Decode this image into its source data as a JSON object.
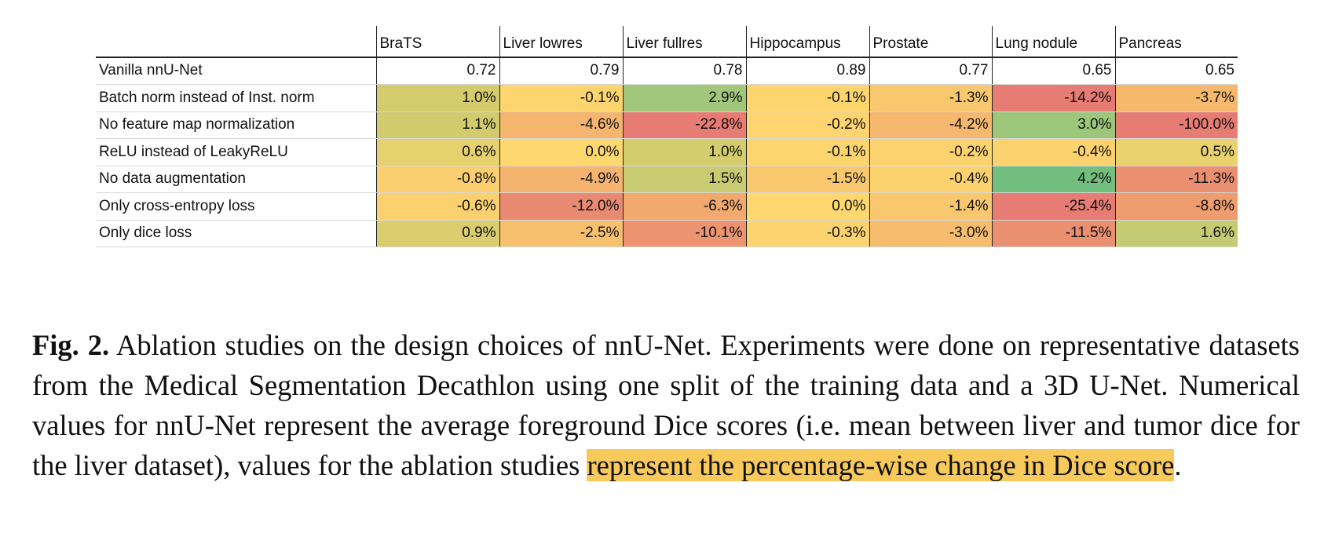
{
  "table": {
    "columns": [
      "BraTS",
      "Liver lowres",
      "Liver fullres",
      "Hippocampus",
      "Prostate",
      "Lung nodule",
      "Pancreas"
    ],
    "rows": [
      {
        "label": "Vanilla nnU-Net",
        "cells": [
          "0.72",
          "0.79",
          "0.78",
          "0.89",
          "0.77",
          "0.65",
          "0.65"
        ]
      },
      {
        "label": "Batch norm instead of Inst. norm",
        "cells": [
          "1.0%",
          "-0.1%",
          "2.9%",
          "-0.1%",
          "-1.3%",
          "-14.2%",
          "-3.7%"
        ],
        "colors": [
          "#d4cb6c",
          "#fdd56f",
          "#a0c77b",
          "#fdd56f",
          "#f9c76d",
          "#e67c73",
          "#f5b86d"
        ]
      },
      {
        "label": "No feature map normalization",
        "cells": [
          "1.1%",
          "-4.6%",
          "-22.8%",
          "-0.2%",
          "-4.2%",
          "3.0%",
          "-100.0%"
        ],
        "colors": [
          "#d2cb6d",
          "#f5b56e",
          "#e67c73",
          "#fdd46f",
          "#f5b86e",
          "#9cc77b",
          "#e67c73"
        ]
      },
      {
        "label": "ReLU instead of LeakyReLU",
        "cells": [
          "0.6%",
          "0.0%",
          "1.0%",
          "-0.1%",
          "-0.2%",
          "-0.4%",
          "0.5%"
        ],
        "colors": [
          "#e6d16f",
          "#fed76f",
          "#d4cd6e",
          "#fdd56f",
          "#fdd36f",
          "#fcd26f",
          "#ead26f"
        ]
      },
      {
        "label": "No data augmentation",
        "cells": [
          "-0.8%",
          "-4.9%",
          "1.5%",
          "-1.5%",
          "-0.4%",
          "4.2%",
          "-11.3%"
        ],
        "colors": [
          "#fbcf6f",
          "#f4b36e",
          "#c8cb71",
          "#f9c86e",
          "#fcd26f",
          "#72be7f",
          "#ea9070"
        ]
      },
      {
        "label": "Only cross-entropy loss",
        "cells": [
          "-0.6%",
          "-12.0%",
          "-6.3%",
          "0.0%",
          "-1.4%",
          "-25.4%",
          "-8.8%"
        ],
        "colors": [
          "#fbd06f",
          "#e88a71",
          "#f1a96e",
          "#fed76f",
          "#f9c86e",
          "#e67c73",
          "#ee9d6f"
        ]
      },
      {
        "label": "Only dice loss",
        "cells": [
          "0.9%",
          "-2.5%",
          "-10.1%",
          "-0.3%",
          "-3.0%",
          "-11.5%",
          "1.6%"
        ],
        "colors": [
          "#dacd6e",
          "#f7c06e",
          "#ec9470",
          "#fcd36f",
          "#f6bd6e",
          "#ea8f70",
          "#c5cb72"
        ]
      }
    ]
  },
  "caption": {
    "label": "Fig. 2.",
    "text": "Ablation studies on the design choices of nnU-Net. Experiments were done on representative datasets from the Medical Segmentation Decathlon using one split of the training data and a 3D U-Net. Numerical values for nnU-Net represent the average foreground Dice scores (i.e. mean between liver and tumor dice for the liver dataset), values for the ablation studies ",
    "highlight": "represent the percentage-wise change in Dice score",
    "end": "."
  }
}
